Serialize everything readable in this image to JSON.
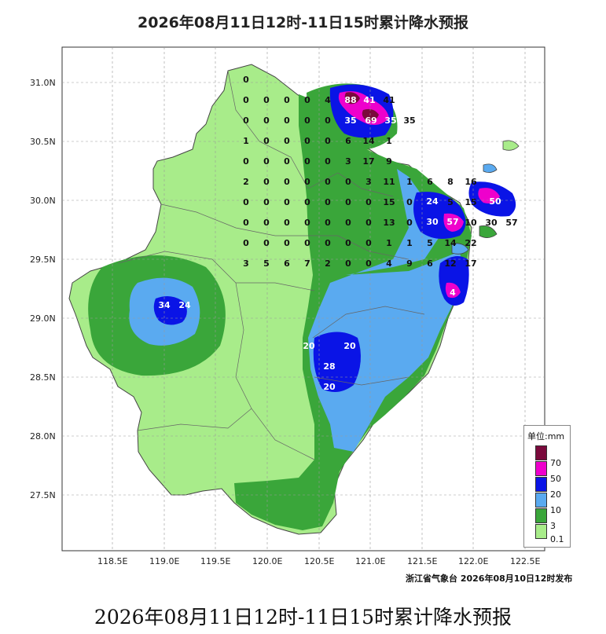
{
  "title": "2026年08月11日12时-11日15时累计降水预报",
  "caption": "2026年08月11日12时-11日15时累计降水预报",
  "source": "浙江省气象台 2026年08月10日12时发布",
  "axes": {
    "lat_labels": [
      "31.0N",
      "30.5N",
      "30.0N",
      "29.5N",
      "29.0N",
      "28.5N",
      "28.0N",
      "27.5N"
    ],
    "lon_labels": [
      "118.5E",
      "119.0E",
      "119.5E",
      "120.0E",
      "120.5E",
      "121.0E",
      "121.5E",
      "122.0E",
      "122.5E"
    ]
  },
  "legend": {
    "unit": "单位:mm",
    "levels": [
      {
        "label": "70",
        "color": "#7a0a3c"
      },
      {
        "label": "50",
        "color": "#ee00cc"
      },
      {
        "label": "20",
        "color": "#0a14e6"
      },
      {
        "label": "10",
        "color": "#5aaaf0"
      },
      {
        "label": "3",
        "color": "#3aa63a"
      },
      {
        "label": "0.1",
        "color": "#a8ec8a"
      }
    ]
  },
  "grid_values": [
    [
      "0",
      "",
      "",
      "",
      "",
      "",
      "",
      "",
      "",
      "",
      "",
      "",
      "",
      "",
      "",
      "",
      "",
      "",
      "",
      "",
      "",
      "",
      "",
      ""
    ],
    [
      "0",
      "0",
      "0",
      "0",
      "4",
      "5",
      "88",
      "41",
      "",
      "",
      "",
      "",
      "",
      "",
      "",
      "",
      "",
      "",
      "",
      "",
      "",
      "",
      "",
      ""
    ],
    [
      "0",
      "0",
      "0",
      "0",
      "0",
      "7",
      "35",
      "69",
      "35",
      "",
      "",
      "",
      "",
      "",
      "",
      "",
      "",
      "",
      "",
      "",
      "",
      "",
      "",
      ""
    ],
    [
      "1",
      "0",
      "0",
      "0",
      "0",
      "6",
      "14",
      "1",
      "",
      "",
      "",
      "",
      "",
      "",
      "",
      "",
      "",
      "",
      "",
      "",
      "",
      "",
      "",
      ""
    ],
    [
      "0",
      "0",
      "0",
      "0",
      "0",
      "3",
      "17",
      "9",
      "",
      "",
      "",
      "",
      "",
      "",
      "",
      "",
      "",
      "",
      "",
      "",
      "",
      "",
      "",
      ""
    ],
    [
      "2",
      "0",
      "0",
      "0",
      "0",
      "0",
      "3",
      "11",
      "1",
      "6",
      "8",
      "16",
      "",
      "",
      "",
      "",
      "",
      "",
      "",
      "",
      "",
      "",
      "",
      ""
    ],
    [
      "0",
      "0",
      "0",
      "0",
      "0",
      "0",
      "0",
      "15",
      "0",
      "5",
      "5",
      "15",
      "24",
      "",
      "",
      "",
      "",
      "",
      "",
      "",
      "",
      "",
      "",
      ""
    ],
    [
      "0",
      "0",
      "0",
      "0",
      "0",
      "0",
      "0",
      "13",
      "0",
      "4",
      "3",
      "10",
      "30",
      "57",
      "",
      "",
      "",
      "",
      "",
      "",
      "",
      "",
      "",
      ""
    ],
    [
      "0",
      "0",
      "0",
      "0",
      "0",
      "0",
      "0",
      "1",
      "1",
      "5",
      "14",
      "22",
      "",
      "",
      "",
      "",
      "",
      "",
      "",
      "",
      "",
      "",
      "",
      ""
    ],
    [
      "3",
      "5",
      "6",
      "7",
      "2",
      "0",
      "0",
      "4",
      "9",
      "6",
      "12",
      "17",
      "",
      "",
      "",
      "",
      "",
      "",
      "",
      "",
      "",
      "",
      "",
      ""
    ]
  ],
  "values": {
    "northwest": [
      "0",
      "0",
      "0",
      "0",
      "0",
      "0",
      "0",
      "0",
      "0",
      "0"
    ],
    "peak_labels": [
      "88",
      "41",
      "35",
      "69",
      "35",
      "24",
      "30",
      "57",
      "50",
      "34",
      "24",
      "28",
      "20",
      "20",
      "20",
      "4"
    ]
  }
}
